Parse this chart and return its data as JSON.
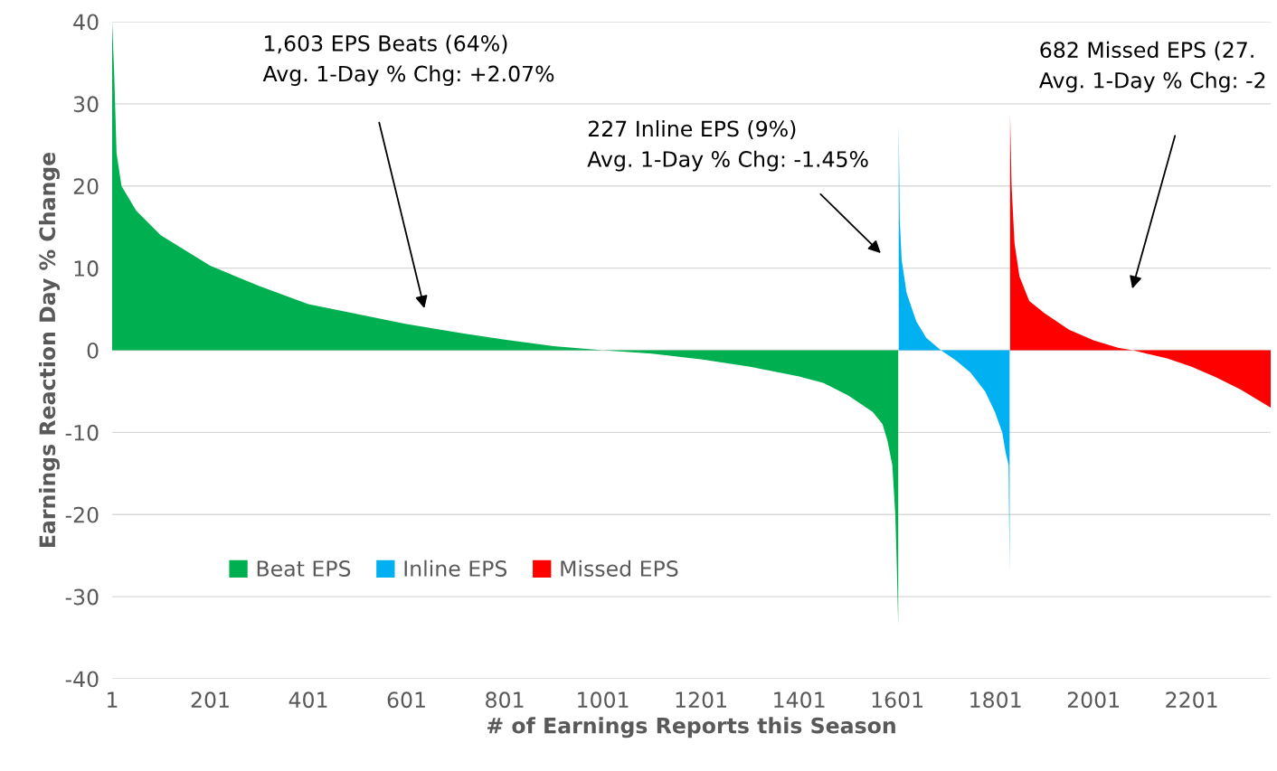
{
  "chart_data": {
    "type": "area",
    "xlabel": "# of Earnings Reports this Season",
    "ylabel": "Earnings Reaction Day % Change",
    "series": [
      {
        "name": "Beat EPS",
        "color": "#00b050",
        "x": [
          1,
          5,
          10,
          20,
          50,
          100,
          201,
          301,
          401,
          501,
          601,
          701,
          801,
          901,
          1001,
          1101,
          1201,
          1301,
          1401,
          1451,
          1501,
          1551,
          1571,
          1581,
          1591,
          1597,
          1600,
          1603
        ],
        "values": [
          40,
          34,
          24,
          20,
          17,
          14,
          10.3,
          7.8,
          5.6,
          4.4,
          3.2,
          2.2,
          1.3,
          0.5,
          0,
          -0.4,
          -1.1,
          -2,
          -3.2,
          -4,
          -5.5,
          -7.5,
          -9,
          -11,
          -14,
          -20,
          -26,
          -33.5
        ]
      },
      {
        "name": "Inline EPS",
        "color": "#00b0f0",
        "x": [
          1604,
          1606,
          1610,
          1620,
          1640,
          1660,
          1690,
          1720,
          1750,
          1780,
          1800,
          1815,
          1822,
          1828,
          1830
        ],
        "values": [
          27.5,
          16,
          11,
          7,
          3.5,
          1.5,
          0,
          -1.2,
          -2.7,
          -5,
          -7.5,
          -10,
          -12.5,
          -14,
          -27
        ]
      },
      {
        "name": "Missed EPS",
        "color": "#ff0000",
        "x": [
          1831,
          1834,
          1840,
          1850,
          1870,
          1901,
          1951,
          2001,
          2051,
          2081,
          2151,
          2201,
          2251,
          2301,
          2362
        ],
        "values": [
          28.5,
          20,
          13,
          9,
          6,
          4.5,
          2.5,
          1.2,
          0.3,
          0,
          -1,
          -2,
          -3.3,
          -4.8,
          -7
        ]
      }
    ],
    "xlim": [
      1,
      2362
    ],
    "xticks": [
      1,
      201,
      401,
      601,
      801,
      1001,
      1201,
      1401,
      1601,
      1801,
      2001,
      2201
    ],
    "ylim": [
      -40,
      40
    ],
    "yticks": [
      -40,
      -30,
      -20,
      -10,
      0,
      10,
      20,
      30,
      40
    ],
    "grid": "y",
    "legend": "bottom left",
    "annotations": [
      "1,603 EPS Beats (64%)\nAvg. 1-Day % Chg: +2.07%",
      "227 Inline EPS (9%)\nAvg. 1-Day % Chg: -1.45%",
      "682 Missed EPS (27.\nAvg. 1-Day % Chg: -2"
    ]
  }
}
